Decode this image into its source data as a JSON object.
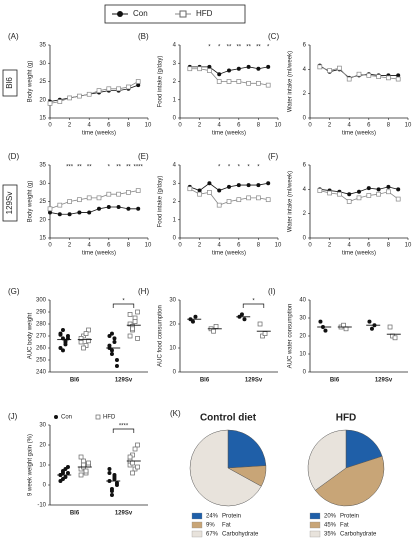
{
  "legend": {
    "series": [
      "Con",
      "HFD"
    ]
  },
  "row_labels": [
    "Bl6",
    "129Sv"
  ],
  "chart_data": [
    {
      "type": "line",
      "panel": "(A)",
      "ylabel": "Body weight (g)",
      "xlabel": "time (weeks)",
      "x": [
        0,
        1,
        2,
        3,
        4,
        5,
        6,
        7,
        8,
        9
      ],
      "xlim": [
        0,
        10
      ],
      "xticks": [
        0,
        2,
        4,
        6,
        8,
        10
      ],
      "ylim": [
        15,
        35
      ],
      "yticks": [
        15,
        20,
        25,
        30,
        35
      ],
      "series": [
        {
          "name": "Con",
          "color": "#111111",
          "marker": "circle",
          "values": [
            19.5,
            20,
            20.5,
            21,
            21.5,
            22,
            22.5,
            22.5,
            23,
            24
          ]
        },
        {
          "name": "HFD",
          "color": "#888888",
          "marker": "square",
          "values": [
            19,
            19.5,
            20.5,
            21,
            21.5,
            22.5,
            23,
            23,
            23.5,
            25
          ]
        }
      ],
      "annotations": []
    },
    {
      "type": "line",
      "panel": "(B)",
      "ylabel": "Food intake (g/day)",
      "xlabel": "time (weeks)",
      "x": [
        1,
        2,
        3,
        4,
        5,
        6,
        7,
        8,
        9
      ],
      "xlim": [
        0,
        10
      ],
      "xticks": [
        0,
        2,
        4,
        6,
        8,
        10
      ],
      "ylim": [
        0,
        4
      ],
      "yticks": [
        0,
        1,
        2,
        3,
        4
      ],
      "series": [
        {
          "name": "Con",
          "color": "#111111",
          "marker": "circle",
          "values": [
            2.8,
            2.8,
            2.8,
            2.4,
            2.6,
            2.7,
            2.8,
            2.7,
            2.8
          ]
        },
        {
          "name": "HFD",
          "color": "#888888",
          "marker": "square",
          "values": [
            2.7,
            2.7,
            2.6,
            2.0,
            2.0,
            2.0,
            1.9,
            1.9,
            1.8
          ]
        }
      ],
      "annotations": [
        {
          "x": 3,
          "text": "*"
        },
        {
          "x": 4,
          "text": "*"
        },
        {
          "x": 5,
          "text": "**"
        },
        {
          "x": 6,
          "text": "**"
        },
        {
          "x": 7,
          "text": "**"
        },
        {
          "x": 8,
          "text": "**"
        },
        {
          "x": 9,
          "text": "*"
        }
      ]
    },
    {
      "type": "line",
      "panel": "(C)",
      "ylabel": "Water intake (ml/week)",
      "xlabel": "time (weeks)",
      "x": [
        1,
        2,
        3,
        4,
        5,
        6,
        7,
        8,
        9
      ],
      "xlim": [
        0,
        10
      ],
      "xticks": [
        0,
        2,
        4,
        6,
        8,
        10
      ],
      "ylim": [
        0,
        6
      ],
      "yticks": [
        0,
        2,
        4,
        6
      ],
      "series": [
        {
          "name": "Con",
          "color": "#111111",
          "marker": "circle",
          "values": [
            4.3,
            3.8,
            4.0,
            3.3,
            3.5,
            3.6,
            3.5,
            3.5,
            3.5
          ]
        },
        {
          "name": "HFD",
          "color": "#888888",
          "marker": "square",
          "values": [
            4.2,
            3.9,
            4.1,
            3.2,
            3.6,
            3.5,
            3.4,
            3.3,
            3.2
          ]
        }
      ],
      "annotations": []
    },
    {
      "type": "line",
      "panel": "(D)",
      "ylabel": "Body weight (g)",
      "xlabel": "time (weeks)",
      "x": [
        0,
        1,
        2,
        3,
        4,
        5,
        6,
        7,
        8,
        9
      ],
      "xlim": [
        0,
        10
      ],
      "xticks": [
        0,
        2,
        4,
        6,
        8,
        10
      ],
      "ylim": [
        15,
        35
      ],
      "yticks": [
        15,
        20,
        25,
        30,
        35
      ],
      "series": [
        {
          "name": "Con",
          "color": "#111111",
          "marker": "circle",
          "values": [
            22,
            21.5,
            21.5,
            22,
            22,
            23,
            23.5,
            23.5,
            23,
            23
          ]
        },
        {
          "name": "HFD",
          "color": "#888888",
          "marker": "square",
          "values": [
            23,
            24,
            25,
            25.5,
            26,
            26,
            27,
            27,
            27.5,
            28
          ]
        }
      ],
      "annotations": [
        {
          "x": 2,
          "text": "***"
        },
        {
          "x": 3,
          "text": "**"
        },
        {
          "x": 4,
          "text": "**"
        },
        {
          "x": 6,
          "text": "*"
        },
        {
          "x": 7,
          "text": "**"
        },
        {
          "x": 8,
          "text": "**"
        },
        {
          "x": 9,
          "text": "****"
        }
      ]
    },
    {
      "type": "line",
      "panel": "(E)",
      "ylabel": "Food intake (g/day)",
      "xlabel": "time (weeks)",
      "x": [
        1,
        2,
        3,
        4,
        5,
        6,
        7,
        8,
        9
      ],
      "xlim": [
        0,
        10
      ],
      "xticks": [
        0,
        2,
        4,
        6,
        8,
        10
      ],
      "ylim": [
        0,
        4
      ],
      "yticks": [
        0,
        1,
        2,
        3,
        4
      ],
      "series": [
        {
          "name": "Con",
          "color": "#111111",
          "marker": "circle",
          "values": [
            2.8,
            2.6,
            3.0,
            2.6,
            2.8,
            2.9,
            2.9,
            2.9,
            3.0
          ]
        },
        {
          "name": "HFD",
          "color": "#888888",
          "marker": "square",
          "values": [
            2.7,
            2.4,
            2.5,
            1.8,
            2.0,
            2.1,
            2.2,
            2.2,
            2.1
          ]
        }
      ],
      "annotations": [
        {
          "x": 4,
          "text": "*"
        },
        {
          "x": 5,
          "text": "*"
        },
        {
          "x": 6,
          "text": "*"
        },
        {
          "x": 7,
          "text": "*"
        },
        {
          "x": 8,
          "text": "*"
        }
      ]
    },
    {
      "type": "line",
      "panel": "(F)",
      "ylabel": "Water intake (ml/week)",
      "xlabel": "time (weeks)",
      "x": [
        1,
        2,
        3,
        4,
        5,
        6,
        7,
        8,
        9
      ],
      "xlim": [
        0,
        10
      ],
      "xticks": [
        0,
        2,
        4,
        6,
        8,
        10
      ],
      "ylim": [
        0,
        6
      ],
      "yticks": [
        0,
        2,
        4,
        6
      ],
      "series": [
        {
          "name": "Con",
          "color": "#111111",
          "marker": "circle",
          "values": [
            4.0,
            3.9,
            3.8,
            3.6,
            3.8,
            4.1,
            4.0,
            4.2,
            4.0
          ]
        },
        {
          "name": "HFD",
          "color": "#888888",
          "marker": "square",
          "values": [
            3.9,
            3.7,
            3.6,
            3.0,
            3.3,
            3.5,
            3.6,
            3.8,
            3.2
          ]
        }
      ],
      "annotations": []
    },
    {
      "type": "dot",
      "panel": "(G)",
      "ylabel": "AUC body weight",
      "categories": [
        "Bl6",
        "129Sv"
      ],
      "ylim": [
        240,
        300
      ],
      "yticks": [
        240,
        250,
        260,
        270,
        280,
        290,
        300
      ],
      "series": [
        {
          "name": "Con",
          "color": "#111111",
          "marker": "circle",
          "values": [
            [
              272,
              268,
              265,
              270,
              260,
              275,
              263,
              268,
              271,
              258,
              266
            ],
            [
              262,
              255,
              268,
              250,
              270,
              258,
              265,
              245,
              260,
              272
            ]
          ],
          "means": [
            267,
            260
          ]
        },
        {
          "name": "HFD",
          "color": "#666666",
          "marker": "square",
          "values": [
            [
              265,
              270,
              262,
              275,
              268,
              260,
              272,
              266
            ],
            [
              280,
              275,
              285,
              290,
              270,
              278,
              282,
              268,
              288,
              276
            ]
          ],
          "means": [
            267,
            279
          ]
        }
      ],
      "annotations": [
        {
          "category": 1,
          "text": "*"
        }
      ]
    },
    {
      "type": "dot",
      "panel": "(H)",
      "ylabel": "AUC food consumption",
      "categories": [
        "Bl6",
        "129Sv"
      ],
      "ylim": [
        0,
        30
      ],
      "yticks": [
        0,
        10,
        20,
        30
      ],
      "series": [
        {
          "name": "Con",
          "color": "#111111",
          "marker": "circle",
          "values": [
            [
              22,
              21,
              23
            ],
            [
              23,
              24,
              22
            ]
          ],
          "means": [
            22,
            23
          ]
        },
        {
          "name": "HFD",
          "color": "#666666",
          "marker": "square",
          "values": [
            [
              18,
              17,
              19
            ],
            [
              20,
              15,
              16
            ]
          ],
          "means": [
            18,
            17
          ]
        }
      ],
      "annotations": [
        {
          "category": 1,
          "text": "*"
        }
      ]
    },
    {
      "type": "dot",
      "panel": "(I)",
      "ylabel": "AUC water consumption",
      "categories": [
        "Bl6",
        "129Sv"
      ],
      "ylim": [
        0,
        40
      ],
      "yticks": [
        0,
        10,
        20,
        30,
        40
      ],
      "series": [
        {
          "name": "Con",
          "color": "#111111",
          "marker": "circle",
          "values": [
            [
              28,
              25,
              23
            ],
            [
              28,
              24,
              26
            ]
          ],
          "means": [
            25,
            26
          ]
        },
        {
          "name": "HFD",
          "color": "#666666",
          "marker": "square",
          "values": [
            [
              25,
              26,
              24
            ],
            [
              25,
              20,
              19
            ]
          ],
          "means": [
            25,
            21
          ]
        }
      ],
      "annotations": []
    },
    {
      "type": "dot",
      "panel": "(J)",
      "ylabel": "9 week weight gain (%)",
      "categories": [
        "Bl6",
        "129Sv"
      ],
      "ylim": [
        -10,
        30
      ],
      "yticks": [
        -10,
        0,
        10,
        20,
        30
      ],
      "legend": true,
      "series": [
        {
          "name": "Con",
          "color": "#111111",
          "marker": "circle",
          "values": [
            [
              5,
              3,
              8,
              6,
              2,
              7,
              4,
              9,
              5,
              6
            ],
            [
              2,
              -3,
              5,
              0,
              8,
              -5,
              3,
              1,
              6,
              -2,
              4
            ]
          ],
          "means": [
            5,
            2
          ]
        },
        {
          "name": "HFD",
          "color": "#666666",
          "marker": "square",
          "values": [
            [
              8,
              12,
              6,
              10,
              14,
              9,
              7,
              11,
              5,
              10
            ],
            [
              10,
              15,
              8,
              20,
              12,
              6,
              18,
              9,
              14,
              11
            ]
          ],
          "means": [
            9,
            12
          ]
        }
      ],
      "annotations": [
        {
          "category": 1,
          "text": "****"
        }
      ]
    },
    {
      "type": "pie",
      "panel": "(K)",
      "title": "Control diet",
      "categories": [
        "Protein",
        "Fat",
        "Carbohydrate"
      ],
      "values": [
        24,
        9,
        67
      ],
      "value_labels": [
        "24%",
        "9%",
        "67%"
      ],
      "colors": [
        "#1f5fa8",
        "#c8a577",
        "#e8e3dc"
      ]
    },
    {
      "type": "pie",
      "title": "HFD",
      "categories": [
        "Protein",
        "Fat",
        "Carbohydrate"
      ],
      "values": [
        20,
        45,
        35
      ],
      "value_labels": [
        "20%",
        "45%",
        "35%"
      ],
      "colors": [
        "#1f5fa8",
        "#c8a577",
        "#e8e3dc"
      ]
    }
  ]
}
